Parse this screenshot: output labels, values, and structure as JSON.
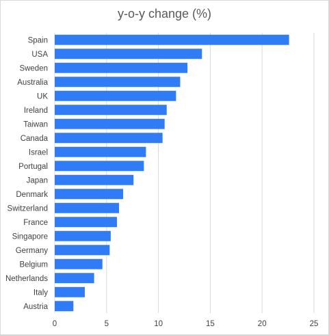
{
  "chart_data": {
    "type": "bar",
    "orientation": "horizontal",
    "title": "y-o-y change (%)",
    "xlabel": "",
    "ylabel": "",
    "categories": [
      "Spain",
      "USA",
      "Sweden",
      "Australia",
      "UK",
      "Ireland",
      "Taiwan",
      "Canada",
      "Israel",
      "Portugal",
      "Japan",
      "Denmark",
      "Switzerland",
      "France",
      "Singapore",
      "Germany",
      "Belgium",
      "Netherlands",
      "Italy",
      "Austria"
    ],
    "values": [
      22.6,
      14.2,
      12.8,
      12.1,
      11.7,
      10.8,
      10.6,
      10.4,
      8.8,
      8.6,
      7.6,
      6.6,
      6.2,
      6.0,
      5.4,
      5.3,
      4.6,
      3.8,
      2.9,
      1.8
    ],
    "xlim": [
      0,
      25
    ],
    "xticks": [
      0,
      5,
      10,
      15,
      20,
      25
    ],
    "grid": "vertical",
    "bar_color": "#2f7cf6",
    "legend": "none"
  }
}
